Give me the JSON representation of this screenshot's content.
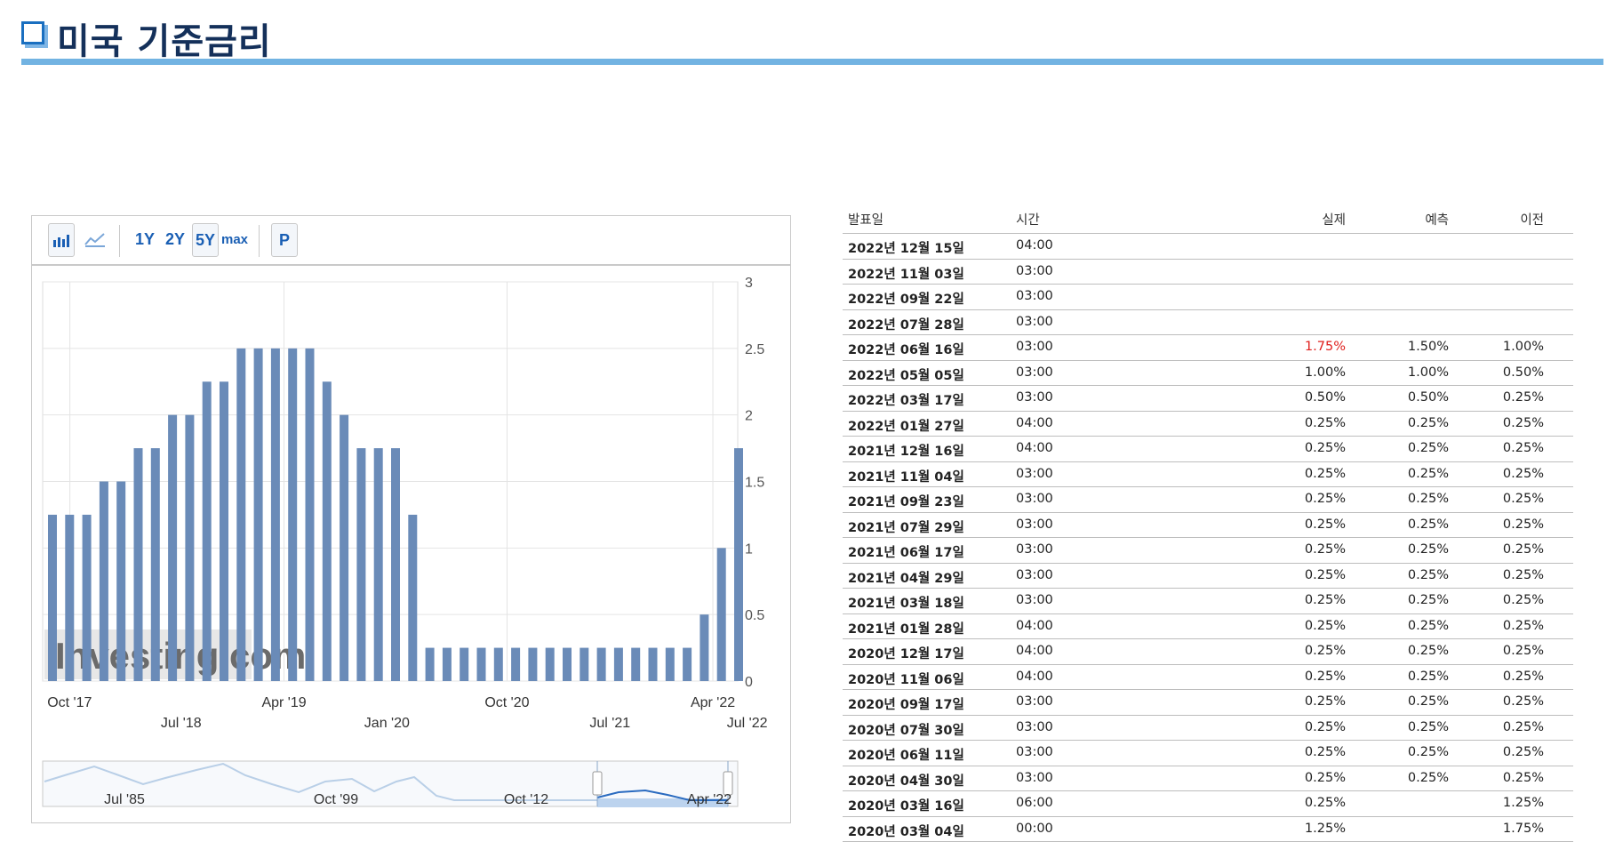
{
  "header": {
    "title": "미국 기준금리"
  },
  "toolbar": {
    "bar_icon": "bar-chart-icon",
    "line_icon": "line-chart-icon",
    "ranges": [
      "1Y",
      "2Y",
      "5Y",
      "max"
    ],
    "selected_range": "5Y",
    "p_label": "P"
  },
  "chart_data": {
    "type": "bar",
    "watermark": "Investing.com",
    "values": [
      1.25,
      1.25,
      1.25,
      1.5,
      1.5,
      1.75,
      1.75,
      2,
      2,
      2.25,
      2.25,
      2.5,
      2.5,
      2.5,
      2.5,
      2.5,
      2.25,
      2,
      1.75,
      1.75,
      1.75,
      1.25,
      0.25,
      0.25,
      0.25,
      0.25,
      0.25,
      0.25,
      0.25,
      0.25,
      0.25,
      0.25,
      0.25,
      0.25,
      0.25,
      0.25,
      0.25,
      0.25,
      0.5,
      1,
      1.75
    ],
    "ylim": [
      0,
      3
    ],
    "yticks": [
      "0",
      "0.5",
      "1",
      "1.5",
      "2",
      "2.5",
      "3"
    ],
    "x_labels_top": [
      {
        "label": "Oct '17",
        "at": 1
      },
      {
        "label": "Apr '19",
        "at": 13.5
      },
      {
        "label": "Oct '20",
        "at": 26.5
      },
      {
        "label": "Apr '22",
        "at": 38.5
      }
    ],
    "x_labels_bottom": [
      {
        "label": "Jul '18",
        "at": 7.5
      },
      {
        "label": "Jan '20",
        "at": 19.5
      },
      {
        "label": "Jul '21",
        "at": 32.5
      },
      {
        "label": "Jul '22",
        "at": 40.5
      }
    ],
    "navigator_labels": [
      "Jul '85",
      "Oct '99",
      "Oct '12",
      "Apr '22"
    ],
    "bar_color": "#6a8bb8",
    "grid": true
  },
  "table": {
    "headers": {
      "date": "발표일",
      "time": "시간",
      "actual": "실제",
      "forecast": "예측",
      "previous": "이전"
    },
    "rows": [
      {
        "date": "2022년 12월 15일",
        "time": "04:00",
        "actual": "",
        "forecast": "",
        "previous": ""
      },
      {
        "date": "2022년 11월 03일",
        "time": "03:00",
        "actual": "",
        "forecast": "",
        "previous": ""
      },
      {
        "date": "2022년 09월 22일",
        "time": "03:00",
        "actual": "",
        "forecast": "",
        "previous": ""
      },
      {
        "date": "2022년 07월 28일",
        "time": "03:00",
        "actual": "",
        "forecast": "",
        "previous": ""
      },
      {
        "date": "2022년 06월 16일",
        "time": "03:00",
        "actual": "1.75%",
        "forecast": "1.50%",
        "previous": "1.00%",
        "actual_red": true
      },
      {
        "date": "2022년 05월 05일",
        "time": "03:00",
        "actual": "1.00%",
        "forecast": "1.00%",
        "previous": "0.50%"
      },
      {
        "date": "2022년 03월 17일",
        "time": "03:00",
        "actual": "0.50%",
        "forecast": "0.50%",
        "previous": "0.25%"
      },
      {
        "date": "2022년 01월 27일",
        "time": "04:00",
        "actual": "0.25%",
        "forecast": "0.25%",
        "previous": "0.25%"
      },
      {
        "date": "2021년 12월 16일",
        "time": "04:00",
        "actual": "0.25%",
        "forecast": "0.25%",
        "previous": "0.25%"
      },
      {
        "date": "2021년 11월 04일",
        "time": "03:00",
        "actual": "0.25%",
        "forecast": "0.25%",
        "previous": "0.25%"
      },
      {
        "date": "2021년 09월 23일",
        "time": "03:00",
        "actual": "0.25%",
        "forecast": "0.25%",
        "previous": "0.25%"
      },
      {
        "date": "2021년 07월 29일",
        "time": "03:00",
        "actual": "0.25%",
        "forecast": "0.25%",
        "previous": "0.25%"
      },
      {
        "date": "2021년 06월 17일",
        "time": "03:00",
        "actual": "0.25%",
        "forecast": "0.25%",
        "previous": "0.25%"
      },
      {
        "date": "2021년 04월 29일",
        "time": "03:00",
        "actual": "0.25%",
        "forecast": "0.25%",
        "previous": "0.25%"
      },
      {
        "date": "2021년 03월 18일",
        "time": "03:00",
        "actual": "0.25%",
        "forecast": "0.25%",
        "previous": "0.25%"
      },
      {
        "date": "2021년 01월 28일",
        "time": "04:00",
        "actual": "0.25%",
        "forecast": "0.25%",
        "previous": "0.25%"
      },
      {
        "date": "2020년 12월 17일",
        "time": "04:00",
        "actual": "0.25%",
        "forecast": "0.25%",
        "previous": "0.25%"
      },
      {
        "date": "2020년 11월 06일",
        "time": "04:00",
        "actual": "0.25%",
        "forecast": "0.25%",
        "previous": "0.25%"
      },
      {
        "date": "2020년 09월 17일",
        "time": "03:00",
        "actual": "0.25%",
        "forecast": "0.25%",
        "previous": "0.25%"
      },
      {
        "date": "2020년 07월 30일",
        "time": "03:00",
        "actual": "0.25%",
        "forecast": "0.25%",
        "previous": "0.25%"
      },
      {
        "date": "2020년 06월 11일",
        "time": "03:00",
        "actual": "0.25%",
        "forecast": "0.25%",
        "previous": "0.25%"
      },
      {
        "date": "2020년 04월 30일",
        "time": "03:00",
        "actual": "0.25%",
        "forecast": "0.25%",
        "previous": "0.25%"
      },
      {
        "date": "2020년 03월 16일",
        "time": "06:00",
        "actual": "0.25%",
        "forecast": "",
        "previous": "1.25%"
      },
      {
        "date": "2020년 03월 04일",
        "time": "00:00",
        "actual": "1.25%",
        "forecast": "",
        "previous": "1.75%"
      }
    ]
  }
}
